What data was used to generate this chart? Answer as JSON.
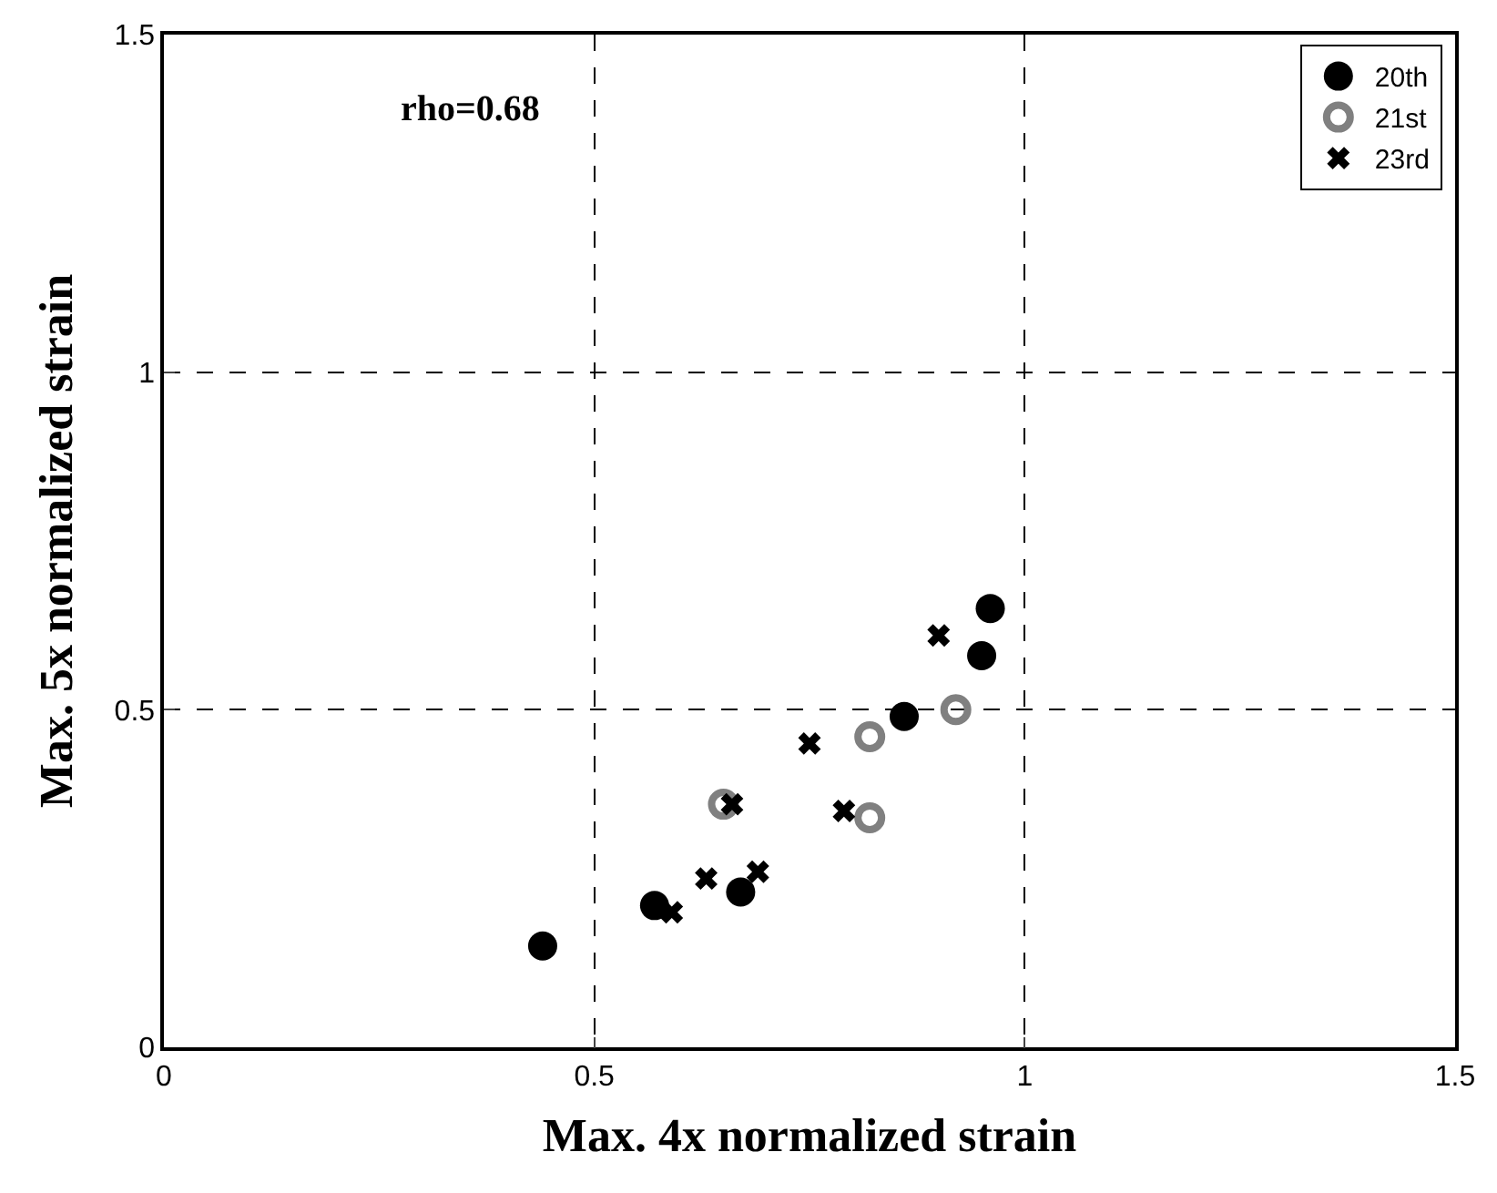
{
  "chart_data": {
    "type": "scatter",
    "xlabel": "Max. 4x normalized strain",
    "ylabel": "Max. 5x normalized strain",
    "annotations": [
      "rho=0.68"
    ],
    "xlim": [
      0,
      1.5
    ],
    "ylim": [
      0,
      1.5
    ],
    "xticks": [
      0,
      0.5,
      1,
      1.5
    ],
    "yticks": [
      0,
      0.5,
      1,
      1.5
    ],
    "grid": true,
    "legend": "top right",
    "series": [
      {
        "name": "20th",
        "color": "#000000",
        "marker": "circle",
        "x": [
          0.44,
          0.57,
          0.67,
          0.86,
          0.95,
          0.96
        ],
        "values": [
          0.15,
          0.21,
          0.23,
          0.49,
          0.58,
          0.65
        ]
      },
      {
        "name": "21st",
        "color": "#808080",
        "marker": "circle",
        "x": [
          0.65,
          0.82,
          0.82,
          0.92
        ],
        "values": [
          0.36,
          0.46,
          0.34,
          0.5
        ]
      },
      {
        "name": "23rd",
        "color": "#000000",
        "marker": "cross",
        "x": [
          0.59,
          0.63,
          0.69,
          0.66,
          0.75,
          0.79,
          0.9
        ],
        "values": [
          0.2,
          0.25,
          0.26,
          0.36,
          0.45,
          0.35,
          0.61
        ]
      }
    ]
  }
}
